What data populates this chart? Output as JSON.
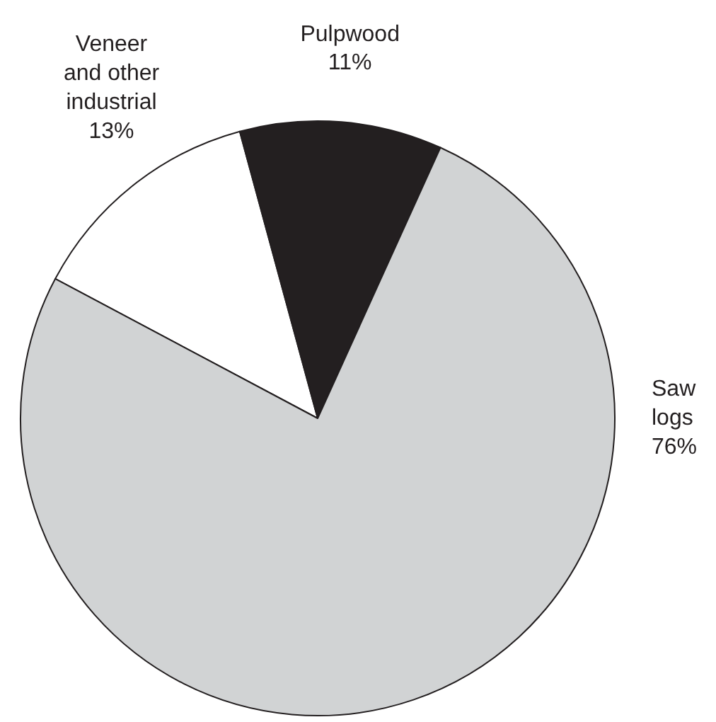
{
  "chart_data": {
    "type": "pie",
    "categories": [
      "Veneer\nand other\nindustrial",
      "Pulpwood",
      "Saw\nlogs"
    ],
    "values": [
      13,
      11,
      76
    ],
    "colors": [
      "#ffffff",
      "#231f20",
      "#d1d3d4"
    ],
    "value_labels": [
      "13%",
      "11%",
      "76%"
    ]
  }
}
